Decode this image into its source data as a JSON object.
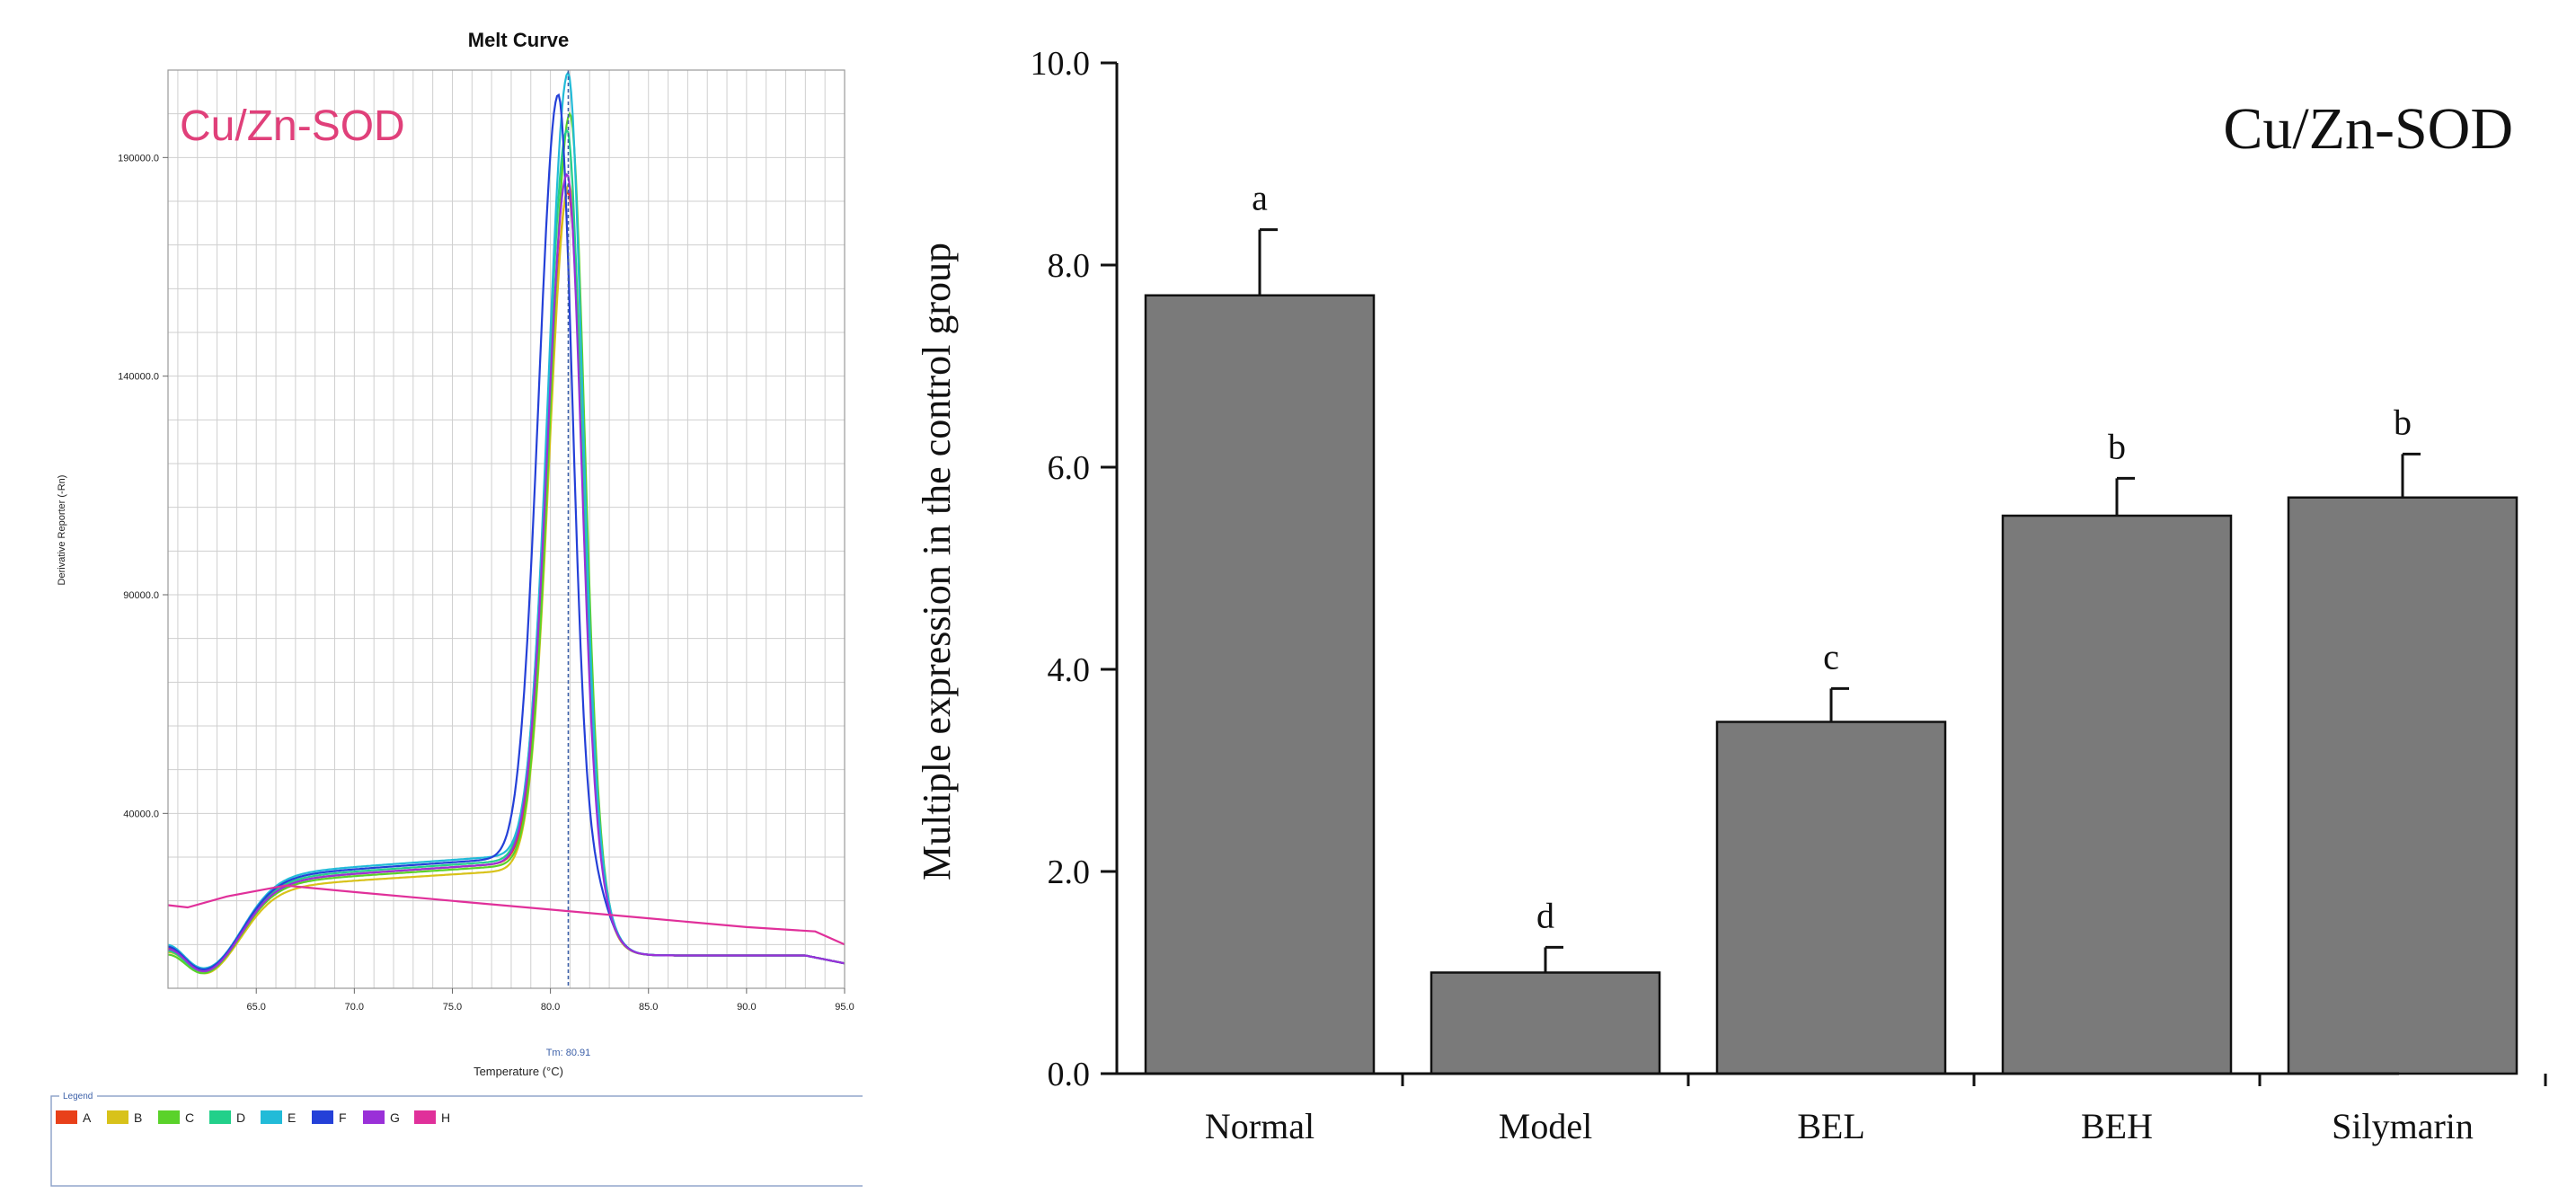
{
  "chart_data": [
    {
      "type": "line",
      "title": "Melt Curve",
      "gene_label": "Cu/Zn-SOD",
      "xlabel": "Temperature (°C)",
      "ylabel": "Derivative Reporter (-Rn)",
      "xlim": [
        60.5,
        95.0
      ],
      "ylim": [
        0,
        210000
      ],
      "x_ticks": [
        "65.0",
        "70.0",
        "75.0",
        "80.0",
        "85.0",
        "90.0",
        "95.0"
      ],
      "y_ticks": [
        "40000.0",
        "90000.0",
        "140000.0",
        "190000.0"
      ],
      "tm_label": "Tm: 80.91",
      "tm_value": 80.91,
      "legend_title": "Legend",
      "legend": [
        {
          "name": "A",
          "color": "#e8401a"
        },
        {
          "name": "B",
          "color": "#d8c21a"
        },
        {
          "name": "C",
          "color": "#5ad22a"
        },
        {
          "name": "D",
          "color": "#22d08a"
        },
        {
          "name": "E",
          "color": "#22bbd8"
        },
        {
          "name": "F",
          "color": "#2440d8"
        },
        {
          "name": "G",
          "color": "#9a30d8"
        },
        {
          "name": "H",
          "color": "#e0309a"
        }
      ],
      "series": [
        {
          "name": "A",
          "color": "#e8401a",
          "peak": 178000,
          "peak_x": 80.9,
          "width": 0.95,
          "base": 25000,
          "min_x": 61.9,
          "min_y": 9000
        },
        {
          "name": "B",
          "color": "#d8c21a",
          "peak": 180000,
          "peak_x": 80.95,
          "width": 0.95,
          "base": 23500,
          "min_x": 62.2,
          "min_y": 8000
        },
        {
          "name": "C",
          "color": "#5ad22a",
          "peak": 196000,
          "peak_x": 81.0,
          "width": 0.95,
          "base": 24500,
          "min_x": 62.0,
          "min_y": 7500
        },
        {
          "name": "D",
          "color": "#22d08a",
          "peak": 192000,
          "peak_x": 80.85,
          "width": 0.95,
          "base": 25500,
          "min_x": 61.8,
          "min_y": 8500
        },
        {
          "name": "E",
          "color": "#22bbd8",
          "peak": 205000,
          "peak_x": 80.9,
          "width": 0.95,
          "base": 26500,
          "min_x": 61.6,
          "min_y": 10000
        },
        {
          "name": "F",
          "color": "#2440d8",
          "peak": 200000,
          "peak_x": 80.4,
          "width": 0.95,
          "base": 26000,
          "min_x": 61.7,
          "min_y": 9500
        },
        {
          "name": "G",
          "color": "#9a30d8",
          "peak": 182000,
          "peak_x": 80.85,
          "width": 0.95,
          "base": 25000,
          "min_x": 61.9,
          "min_y": 8800
        },
        {
          "name": "H",
          "color": "#e0309a",
          "peak": 0,
          "peak_x": 0,
          "width": 1,
          "base": 0,
          "min_x": 0,
          "min_y": 0,
          "linear": [
            [
              60.5,
              19000
            ],
            [
              61.5,
              18500
            ],
            [
              63.5,
              21000
            ],
            [
              66.5,
              23500
            ],
            [
              70,
              22000
            ],
            [
              75,
              20000
            ],
            [
              80,
              18000
            ],
            [
              85,
              16000
            ],
            [
              90,
              14000
            ],
            [
              93.5,
              13000
            ],
            [
              95,
              10000
            ]
          ]
        }
      ]
    },
    {
      "type": "bar",
      "title": "Cu/Zn-SOD",
      "ylabel": "Multiple expression  in the control  group",
      "categories": [
        "Normal",
        "Model",
        "BEL",
        "BEH",
        "Silymarin"
      ],
      "values": [
        7.7,
        1.0,
        3.48,
        5.52,
        5.7
      ],
      "errors": [
        0.65,
        0.25,
        0.33,
        0.37,
        0.43
      ],
      "significance": [
        "a",
        "d",
        "c",
        "b",
        "b"
      ],
      "ylim": [
        0,
        10
      ],
      "y_ticks": [
        "0.0",
        "2.0",
        "4.0",
        "6.0",
        "8.0",
        "10.0"
      ],
      "bar_color": "#7a7a7a"
    }
  ]
}
